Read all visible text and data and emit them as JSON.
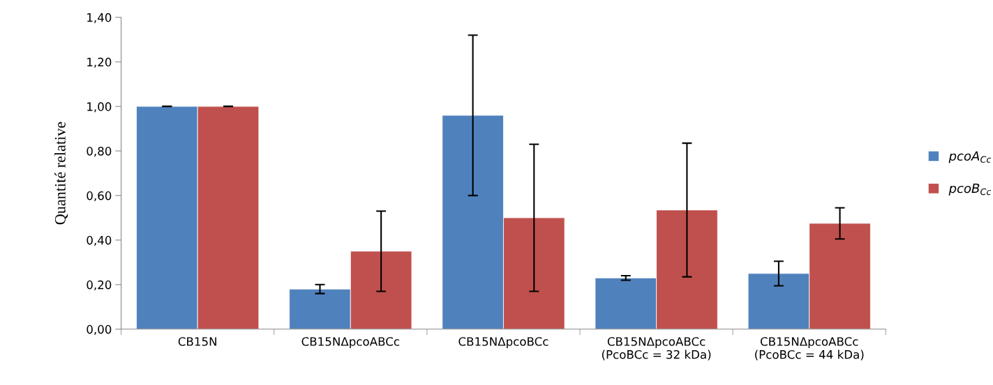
{
  "chart_data": {
    "type": "bar",
    "ylabel": "Quantité relative",
    "categories": [
      "CB15N",
      "CB15NΔpcoABCc",
      "CB15NΔpcoBCc",
      "CB15NΔpcoABCc\n(PcoBCc = 32 kDa)",
      "CB15NΔpcoABCc\n(PcoBCc = 44 kDa)"
    ],
    "series": [
      {
        "name": "pcoA$_{Cc}$",
        "color": "#4f81bd",
        "values": [
          1.0,
          0.18,
          0.96,
          0.23,
          0.25
        ],
        "errors": [
          0.0,
          0.02,
          0.36,
          0.01,
          0.055
        ]
      },
      {
        "name": "pcoB$_{Cc}$",
        "color": "#c0504d",
        "values": [
          1.0,
          0.35,
          0.5,
          0.535,
          0.475
        ],
        "errors": [
          0.0,
          0.18,
          0.33,
          0.3,
          0.07
        ]
      }
    ],
    "ylim": [
      0,
      1.4
    ],
    "yticks": [
      {
        "value": 0,
        "label": "0,00"
      },
      {
        "value": 0.2,
        "label": "0,20"
      },
      {
        "value": 0.4,
        "label": "0,40"
      },
      {
        "value": 0.6,
        "label": "0,60"
      },
      {
        "value": 0.8,
        "label": "0,80"
      },
      {
        "value": 1.0,
        "label": "1,00"
      },
      {
        "value": 1.2,
        "label": "1,20"
      },
      {
        "value": 1.4,
        "label": "1,40"
      }
    ],
    "grid": false,
    "legend": "right"
  }
}
